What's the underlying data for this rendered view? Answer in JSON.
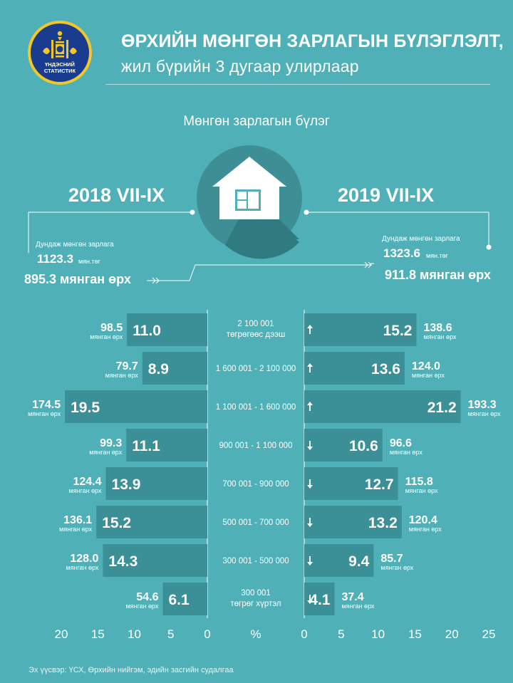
{
  "title_line1": "ӨРХИЙН МӨНГӨН ЗАРЛАГЫН БҮЛЭГЛЭЛТ,",
  "title_line2": "жил бүрийн 3 дугаар улирлаар",
  "logo_text": "ҮНДЭСНИЙ СТАТИСТИК",
  "subtitle": "Мөнгөн зарлагын бүлэг",
  "left": {
    "year": "2018 VII-IX",
    "avg_label": "Дундаж мөнгөн зарлага",
    "avg_value": "1123.3",
    "avg_unit": "мян.төг",
    "households": "895.3 мянган өрх"
  },
  "right": {
    "year": "2019 VII-IX",
    "avg_label": "Дундаж мөнгөн зарлага",
    "avg_value": "1323.6",
    "avg_unit": "мян.төг",
    "households": "911.8 мянган өрх"
  },
  "colors": {
    "background": "#4fb1b7",
    "bar": "#3a9096",
    "house_circle": "#3e8f95",
    "logo_bg": "#1a3c8e",
    "logo_ring": "#f2c72a"
  },
  "chart_data": {
    "type": "bar",
    "orientation": "horizontal-butterfly",
    "categories": [
      [
        "2 100 001",
        "төгрөгөөс дээш"
      ],
      [
        "1 600 001 - 2 100 000"
      ],
      [
        "1 100 001 - 1 600 000"
      ],
      [
        "900 001 - 1 100 000"
      ],
      [
        "700 001 - 900 000"
      ],
      [
        "500 001 - 700 000"
      ],
      [
        "300 001 - 500 000"
      ],
      [
        "300 001",
        "төгрөг хүртэл"
      ]
    ],
    "series": [
      {
        "name": "2018 VII-IX",
        "values": [
          11.0,
          8.9,
          19.5,
          11.1,
          13.9,
          15.2,
          14.3,
          6.1
        ],
        "value_labels": [
          "11.0",
          "8.9",
          "19.5",
          "11.1",
          "13.9",
          "15.2",
          "14.3",
          "6.1"
        ],
        "households": [
          "98.5",
          "79.7",
          "174.5",
          "99.3",
          "124.4",
          "136.1",
          "128.0",
          "54.6"
        ]
      },
      {
        "name": "2019 VII-IX",
        "values": [
          15.2,
          13.6,
          21.2,
          10.6,
          12.7,
          13.2,
          9.4,
          4.1
        ],
        "value_labels": [
          "15.2",
          "13.6",
          "21.2",
          "10.6",
          "12.7",
          "13.2",
          "9.4",
          "4.1"
        ],
        "households": [
          "138.6",
          "124.0",
          "193.3",
          "96.6",
          "115.8",
          "120.4",
          "85.7",
          "37.4"
        ]
      }
    ],
    "trend": [
      "up",
      "up",
      "up",
      "down",
      "down",
      "down",
      "down",
      "down"
    ],
    "households_unit": "мянган өрх",
    "left_axis": {
      "ticks": [
        "20",
        "15",
        "10",
        "5",
        "0"
      ],
      "range": [
        20,
        0
      ]
    },
    "right_axis": {
      "ticks": [
        "0",
        "5",
        "10",
        "15",
        "20",
        "25"
      ],
      "range": [
        0,
        25
      ]
    },
    "center_axis_label": "%"
  },
  "source": "Эх үүсвэр: ҮСХ, Өрхийн нийгэм, эдийн засгийн судалгаа"
}
